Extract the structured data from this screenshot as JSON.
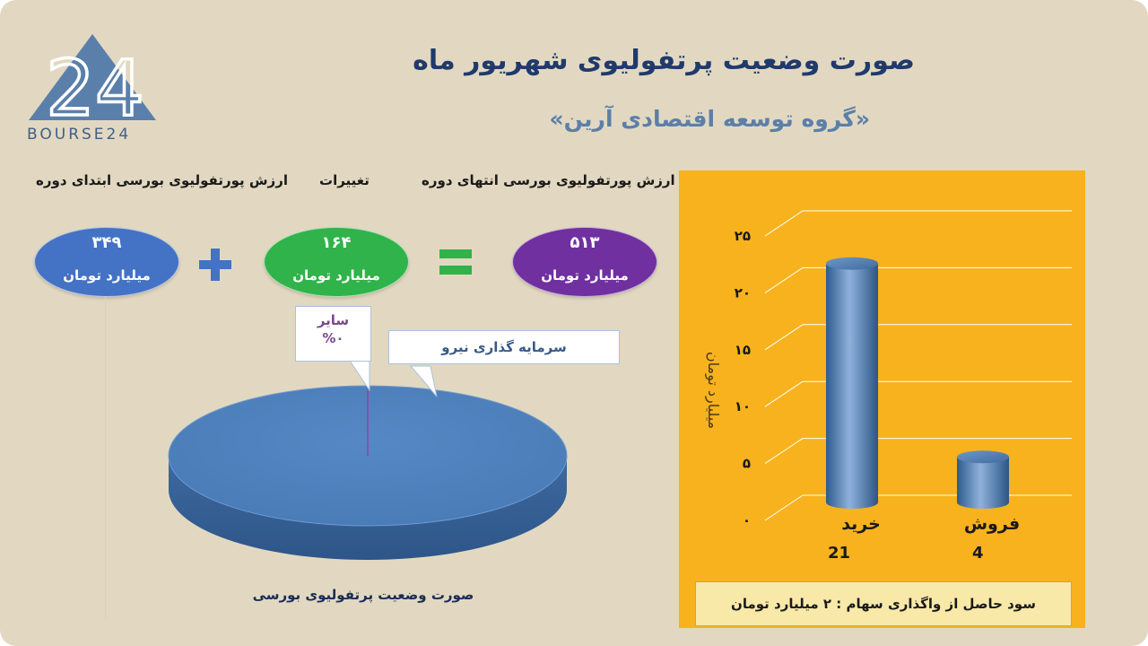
{
  "header": {
    "title": "صورت وضعیت پرتفولیوی شهریور ماه",
    "subtitle": "«گروه توسعه اقتصادی آرین»"
  },
  "logo": {
    "text": "BOURSE24",
    "mark": "24"
  },
  "summary": {
    "labels": {
      "end": "ارزش پورتفولیوی بورسی انتهای دوره",
      "change": "تغییرات",
      "start": "ارزش پورتفولیوی بورسی ابتدای دوره"
    },
    "end_value": "۵۱۳",
    "change_value": "۱۶۴",
    "start_value": "۳۴۹",
    "unit": "میلیارد تومان",
    "plus_icon": "plus-icon",
    "equals_icon": "equals-icon",
    "colors": {
      "end": "#7030a0",
      "change": "#2fb34a",
      "start": "#4472c4"
    }
  },
  "pie": {
    "caption": "صورت وضعیت پرتفولیوی بورسی",
    "callout_other_name": "سایر",
    "callout_other_value": "%۰",
    "callout_main_name": "سرمایه گذاری نیرو"
  },
  "chart_data": [
    {
      "type": "pie",
      "title": "صورت وضعیت پرتفولیوی بورسی",
      "categories": [
        "سرمایه گذاری نیرو",
        "سایر"
      ],
      "values": [
        100,
        0
      ],
      "colors": [
        "#4f81bd",
        "#9e3aa4"
      ]
    },
    {
      "type": "bar",
      "categories": [
        "خرید",
        "فروش"
      ],
      "values": [
        21,
        4
      ],
      "value_labels": [
        "21",
        "4"
      ],
      "ylabel": "میلیارد تومان",
      "ylim": [
        0,
        25
      ],
      "yticks": [
        "۰",
        "۵",
        "۱۰",
        "۱۵",
        "۲۰",
        "۲۵"
      ],
      "ytick_values": [
        0,
        5,
        10,
        15,
        20,
        25
      ],
      "grid": true,
      "bar_color": "#4f81bd",
      "background": "#f7b21e"
    }
  ],
  "footer": {
    "text": "سود حاصل از واگذاری سهام :  ۲ میلیارد تومان"
  }
}
